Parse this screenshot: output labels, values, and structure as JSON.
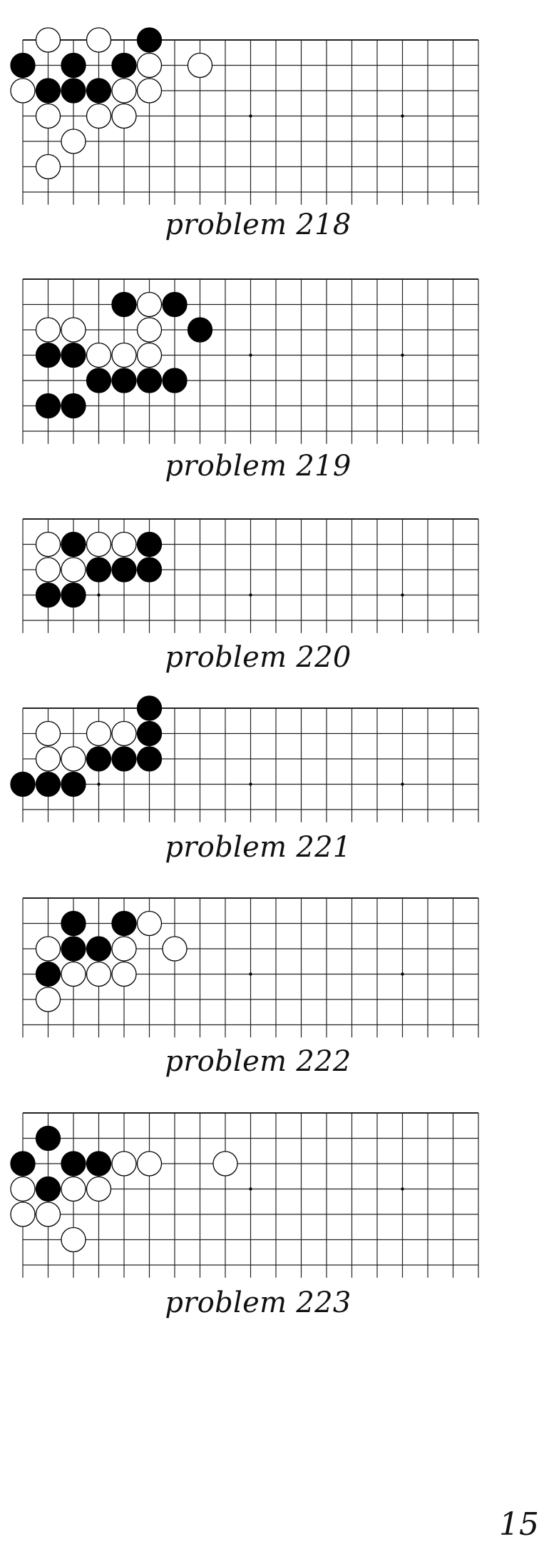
{
  "colors": {
    "line": "#222222",
    "black_stone": "#000000",
    "white_stone": "#ffffff",
    "star": "#000000"
  },
  "page_number": "15",
  "problems": [
    {
      "caption": "problem 218",
      "rows": 7,
      "cols": 19,
      "top_edge": true,
      "stars": [
        [
          3,
          3
        ],
        [
          9,
          3
        ],
        [
          15,
          3
        ]
      ],
      "stones": [
        {
          "c": "W",
          "x": 1,
          "y": 0
        },
        {
          "c": "W",
          "x": 3,
          "y": 0
        },
        {
          "c": "B",
          "x": 5,
          "y": 0
        },
        {
          "c": "B",
          "x": 0,
          "y": 1
        },
        {
          "c": "B",
          "x": 2,
          "y": 1
        },
        {
          "c": "B",
          "x": 4,
          "y": 1
        },
        {
          "c": "W",
          "x": 5,
          "y": 1
        },
        {
          "c": "W",
          "x": 7,
          "y": 1
        },
        {
          "c": "W",
          "x": 0,
          "y": 2
        },
        {
          "c": "B",
          "x": 1,
          "y": 2
        },
        {
          "c": "B",
          "x": 2,
          "y": 2
        },
        {
          "c": "B",
          "x": 3,
          "y": 2
        },
        {
          "c": "W",
          "x": 4,
          "y": 2
        },
        {
          "c": "W",
          "x": 5,
          "y": 2
        },
        {
          "c": "W",
          "x": 1,
          "y": 3
        },
        {
          "c": "W",
          "x": 3,
          "y": 3
        },
        {
          "c": "W",
          "x": 4,
          "y": 3
        },
        {
          "c": "W",
          "x": 2,
          "y": 4
        },
        {
          "c": "W",
          "x": 1,
          "y": 5
        }
      ]
    },
    {
      "caption": "problem 219",
      "rows": 7,
      "cols": 19,
      "top_edge": true,
      "stars": [
        [
          3,
          3
        ],
        [
          9,
          3
        ],
        [
          15,
          3
        ]
      ],
      "stones": [
        {
          "c": "B",
          "x": 4,
          "y": 1
        },
        {
          "c": "W",
          "x": 5,
          "y": 1
        },
        {
          "c": "B",
          "x": 6,
          "y": 1
        },
        {
          "c": "W",
          "x": 1,
          "y": 2
        },
        {
          "c": "W",
          "x": 2,
          "y": 2
        },
        {
          "c": "W",
          "x": 5,
          "y": 2
        },
        {
          "c": "B",
          "x": 7,
          "y": 2
        },
        {
          "c": "B",
          "x": 1,
          "y": 3
        },
        {
          "c": "B",
          "x": 2,
          "y": 3
        },
        {
          "c": "W",
          "x": 3,
          "y": 3
        },
        {
          "c": "W",
          "x": 4,
          "y": 3
        },
        {
          "c": "W",
          "x": 5,
          "y": 3
        },
        {
          "c": "B",
          "x": 3,
          "y": 4
        },
        {
          "c": "B",
          "x": 4,
          "y": 4
        },
        {
          "c": "B",
          "x": 5,
          "y": 4
        },
        {
          "c": "B",
          "x": 6,
          "y": 4
        },
        {
          "c": "B",
          "x": 1,
          "y": 5
        },
        {
          "c": "B",
          "x": 2,
          "y": 5
        }
      ]
    },
    {
      "caption": "problem 220",
      "rows": 5,
      "cols": 19,
      "top_edge": true,
      "stars": [
        [
          3,
          3
        ],
        [
          9,
          3
        ],
        [
          15,
          3
        ]
      ],
      "stones": [
        {
          "c": "W",
          "x": 1,
          "y": 1
        },
        {
          "c": "B",
          "x": 2,
          "y": 1
        },
        {
          "c": "W",
          "x": 3,
          "y": 1
        },
        {
          "c": "W",
          "x": 4,
          "y": 1
        },
        {
          "c": "B",
          "x": 5,
          "y": 1
        },
        {
          "c": "W",
          "x": 1,
          "y": 2
        },
        {
          "c": "W",
          "x": 2,
          "y": 2
        },
        {
          "c": "B",
          "x": 3,
          "y": 2
        },
        {
          "c": "B",
          "x": 4,
          "y": 2
        },
        {
          "c": "B",
          "x": 5,
          "y": 2
        },
        {
          "c": "B",
          "x": 1,
          "y": 3
        },
        {
          "c": "B",
          "x": 2,
          "y": 3
        }
      ]
    },
    {
      "caption": "problem 221",
      "rows": 5,
      "cols": 19,
      "top_edge": true,
      "stars": [
        [
          3,
          3
        ],
        [
          9,
          3
        ],
        [
          15,
          3
        ]
      ],
      "stones": [
        {
          "c": "B",
          "x": 5,
          "y": 0
        },
        {
          "c": "W",
          "x": 1,
          "y": 1
        },
        {
          "c": "W",
          "x": 3,
          "y": 1
        },
        {
          "c": "W",
          "x": 4,
          "y": 1
        },
        {
          "c": "B",
          "x": 5,
          "y": 1
        },
        {
          "c": "W",
          "x": 1,
          "y": 2
        },
        {
          "c": "W",
          "x": 2,
          "y": 2
        },
        {
          "c": "B",
          "x": 3,
          "y": 2
        },
        {
          "c": "B",
          "x": 4,
          "y": 2
        },
        {
          "c": "B",
          "x": 5,
          "y": 2
        },
        {
          "c": "B",
          "x": 0,
          "y": 3
        },
        {
          "c": "B",
          "x": 1,
          "y": 3
        },
        {
          "c": "B",
          "x": 2,
          "y": 3
        }
      ]
    },
    {
      "caption": "problem 222",
      "rows": 6,
      "cols": 19,
      "top_edge": true,
      "stars": [
        [
          9,
          3
        ],
        [
          15,
          3
        ]
      ],
      "stones": [
        {
          "c": "B",
          "x": 2,
          "y": 1
        },
        {
          "c": "B",
          "x": 4,
          "y": 1
        },
        {
          "c": "W",
          "x": 5,
          "y": 1
        },
        {
          "c": "W",
          "x": 1,
          "y": 2
        },
        {
          "c": "B",
          "x": 2,
          "y": 2
        },
        {
          "c": "B",
          "x": 3,
          "y": 2
        },
        {
          "c": "W",
          "x": 4,
          "y": 2
        },
        {
          "c": "W",
          "x": 6,
          "y": 2
        },
        {
          "c": "B",
          "x": 1,
          "y": 3
        },
        {
          "c": "W",
          "x": 2,
          "y": 3
        },
        {
          "c": "W",
          "x": 3,
          "y": 3
        },
        {
          "c": "W",
          "x": 4,
          "y": 3
        },
        {
          "c": "W",
          "x": 1,
          "y": 4
        }
      ]
    },
    {
      "caption": "problem 223",
      "rows": 7,
      "cols": 19,
      "top_edge": true,
      "stars": [
        [
          9,
          3
        ],
        [
          15,
          3
        ]
      ],
      "stones": [
        {
          "c": "B",
          "x": 1,
          "y": 1
        },
        {
          "c": "B",
          "x": 0,
          "y": 2
        },
        {
          "c": "B",
          "x": 2,
          "y": 2
        },
        {
          "c": "B",
          "x": 3,
          "y": 2
        },
        {
          "c": "W",
          "x": 4,
          "y": 2
        },
        {
          "c": "W",
          "x": 5,
          "y": 2
        },
        {
          "c": "W",
          "x": 8,
          "y": 2
        },
        {
          "c": "W",
          "x": 0,
          "y": 3
        },
        {
          "c": "B",
          "x": 1,
          "y": 3
        },
        {
          "c": "W",
          "x": 2,
          "y": 3
        },
        {
          "c": "W",
          "x": 3,
          "y": 3
        },
        {
          "c": "W",
          "x": 0,
          "y": 4
        },
        {
          "c": "W",
          "x": 1,
          "y": 4
        },
        {
          "c": "W",
          "x": 2,
          "y": 5
        }
      ]
    }
  ]
}
